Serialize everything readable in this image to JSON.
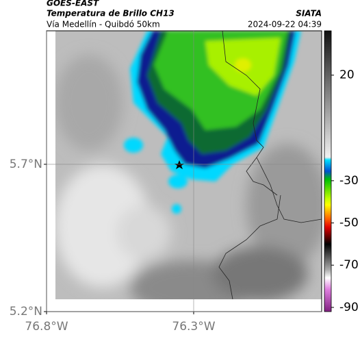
{
  "header": {
    "agency": "GOES-EAST",
    "title": "Temperatura de Brillo CH13",
    "subtitle": "Vía Medellín - Quibdó 50km",
    "source": "SIATA",
    "timestamp": "2024-09-22 04:39"
  },
  "map": {
    "xlim": [
      -76.8,
      -75.865
    ],
    "ylim": [
      5.2,
      6.153
    ],
    "xticks": [
      {
        "value": -76.8,
        "label": "76.8°W"
      },
      {
        "value": -76.3,
        "label": "76.3°W"
      }
    ],
    "yticks": [
      {
        "value": 5.2,
        "label": "5.2°N"
      },
      {
        "value": 5.7,
        "label": "5.7°N"
      }
    ],
    "grid": true
  },
  "colorbar": {
    "lim": [
      -92,
      41
    ],
    "ticks": [
      20,
      -30,
      -50,
      -70,
      -90
    ]
  }
}
